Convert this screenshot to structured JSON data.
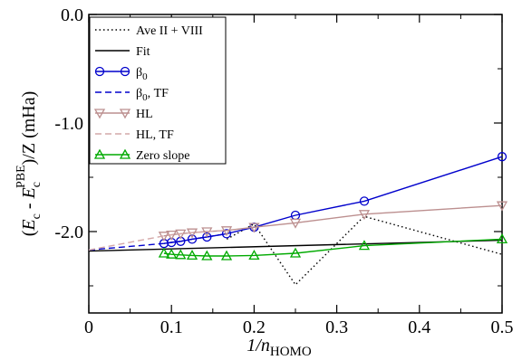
{
  "chart_data": {
    "type": "line",
    "xlabel": {
      "main": "1/n",
      "sub": "HOMO"
    },
    "ylabel": {
      "open": "(",
      "e1": "E",
      "s1": "c",
      "minus": " - ",
      "e2": "E",
      "s2": "c",
      "sup": "PBE",
      "rest": ")/Z (mHa)"
    },
    "xlim": [
      0,
      0.5
    ],
    "ylim": [
      -2.75,
      0.0
    ],
    "xticks": [
      0,
      0.1,
      0.2,
      0.3,
      0.4,
      0.5
    ],
    "xtick_labels": [
      "0",
      "0.1",
      "0.2",
      "0.3",
      "0.4",
      "0.5"
    ],
    "yticks": [
      0.0,
      -1.0,
      -2.0
    ],
    "ytick_labels": [
      "0.0",
      "-1.0",
      "-2.0"
    ],
    "legend_position": "top-left",
    "series": [
      {
        "name": "Ave II + VIII",
        "legend": {
          "main": "Ave II + VIII"
        },
        "color": "#000000",
        "style": "dotted",
        "marker": "none",
        "x": [
          0.167,
          0.2,
          0.25,
          0.333,
          0.5
        ],
        "y": [
          -2.07,
          -1.93,
          -2.49,
          -1.86,
          -2.21
        ]
      },
      {
        "name": "Fit",
        "legend": {
          "main": "Fit"
        },
        "color": "#000000",
        "style": "solid",
        "marker": "none",
        "x": [
          0.0,
          0.5
        ],
        "y": [
          -2.18,
          -2.08
        ]
      },
      {
        "name": "β0",
        "legend": {
          "main": "β",
          "sub": "0"
        },
        "color": "#0000cc",
        "style": "solid",
        "marker": "circle",
        "x": [
          0.0909,
          0.1,
          0.1111,
          0.125,
          0.1429,
          0.1667,
          0.2,
          0.25,
          0.3333,
          0.5
        ],
        "y": [
          -2.11,
          -2.1,
          -2.09,
          -2.07,
          -2.05,
          -2.02,
          -1.96,
          -1.85,
          -1.72,
          -1.31
        ]
      },
      {
        "name": "β0, TF",
        "legend": {
          "main": "β",
          "sub": "0",
          "rest": ", TF"
        },
        "color": "#0000cc",
        "style": "dashed",
        "marker": "none",
        "x": [
          0.0,
          0.0909,
          0.1,
          0.1111,
          0.125,
          0.1429,
          0.1667
        ],
        "y": [
          -2.17,
          -2.11,
          -2.1,
          -2.09,
          -2.07,
          -2.05,
          -2.02
        ]
      },
      {
        "name": "HL",
        "legend": {
          "main": "HL"
        },
        "color": "#bc8f8f",
        "style": "solid",
        "marker": "triangle-down",
        "x": [
          0.0909,
          0.1,
          0.1111,
          0.125,
          0.1429,
          0.1667,
          0.2,
          0.25,
          0.3333,
          0.5
        ],
        "y": [
          -2.04,
          -2.03,
          -2.02,
          -2.01,
          -2.0,
          -1.99,
          -1.96,
          -1.92,
          -1.84,
          -1.76
        ]
      },
      {
        "name": "HL, TF",
        "legend": {
          "main": "HL, TF"
        },
        "color": "#d4a8a8",
        "style": "dashed",
        "marker": "none",
        "x": [
          0.0,
          0.0909,
          0.1,
          0.1111,
          0.125,
          0.1429,
          0.1667
        ],
        "y": [
          -2.17,
          -2.04,
          -2.03,
          -2.02,
          -2.01,
          -2.0,
          -1.99
        ]
      },
      {
        "name": "Zero slope",
        "legend": {
          "main": "Zero slope"
        },
        "color": "#00aa00",
        "style": "solid",
        "marker": "triangle-up",
        "x": [
          0.0909,
          0.1,
          0.1111,
          0.125,
          0.1429,
          0.1667,
          0.2,
          0.25,
          0.3333,
          0.5
        ],
        "y": [
          -2.2,
          -2.21,
          -2.215,
          -2.22,
          -2.225,
          -2.225,
          -2.22,
          -2.2,
          -2.13,
          -2.07
        ]
      }
    ]
  }
}
